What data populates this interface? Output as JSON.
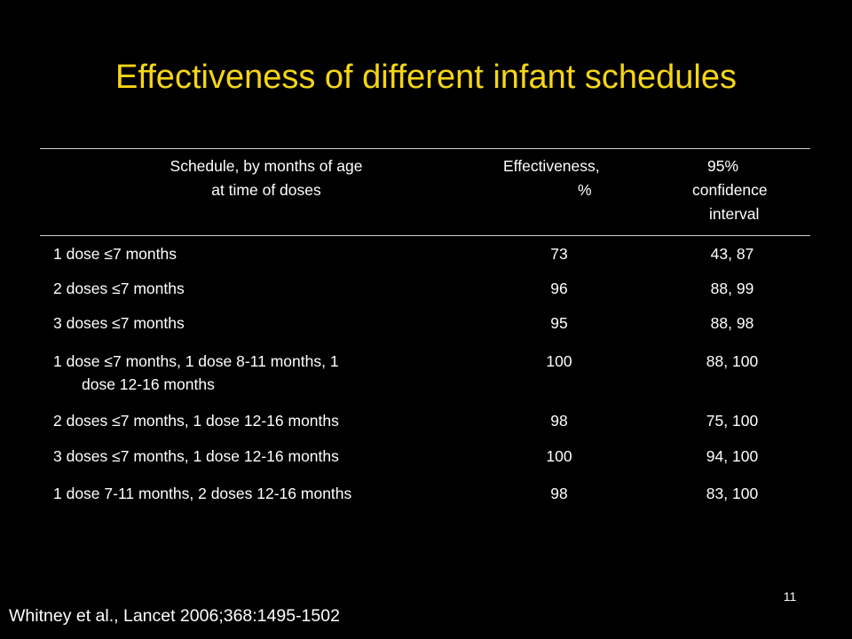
{
  "slide": {
    "title": "Effectiveness of different infant schedules",
    "page_number": "11",
    "citation": "Whitney et al., Lancet 2006;368:1495-1502"
  },
  "colors": {
    "background": "#000000",
    "title": "#f5d516",
    "text": "#ffffff",
    "rule": "#cfcfcf"
  },
  "table": {
    "headers": {
      "schedule": [
        "Schedule, by months of age",
        "at time of doses"
      ],
      "effectiveness": [
        "Effectiveness,",
        "%"
      ],
      "ci": [
        "95%",
        "confidence",
        "interval"
      ]
    },
    "rows": [
      {
        "schedule": [
          "1 dose ≤7 months"
        ],
        "effectiveness": "73",
        "ci": "43, 87"
      },
      {
        "schedule": [
          "2 doses ≤7 months"
        ],
        "effectiveness": "96",
        "ci": "88, 99"
      },
      {
        "schedule": [
          "3 doses ≤7 months"
        ],
        "effectiveness": "95",
        "ci": "88, 98"
      },
      {
        "schedule": [
          "1 dose ≤7 months, 1 dose 8-11 months, 1",
          "dose 12-16 months"
        ],
        "effectiveness": "100",
        "ci": "88, 100"
      },
      {
        "schedule": [
          "2 doses ≤7 months, 1 dose 12-16 months"
        ],
        "effectiveness": "98",
        "ci": "75, 100"
      },
      {
        "schedule": [
          "3 doses ≤7 months, 1 dose 12-16 months"
        ],
        "effectiveness": "100",
        "ci": "94, 100"
      },
      {
        "schedule": [
          "1 dose 7-11 months, 2 doses 12-16 months"
        ],
        "effectiveness": "98",
        "ci": "83, 100"
      }
    ]
  }
}
